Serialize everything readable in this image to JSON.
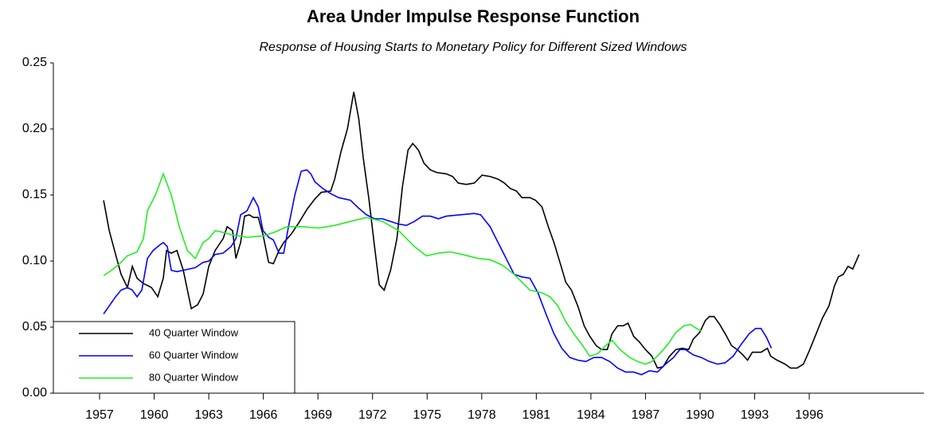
{
  "chart_data": {
    "type": "line",
    "title": "Area Under Impulse Response Function",
    "subtitle": "Response of Housing Starts to Monetary Policy for Different Sized Windows",
    "xlim": [
      1954.46,
      2002.3
    ],
    "xticks": [
      1957,
      1960,
      1963,
      1966,
      1969,
      1972,
      1975,
      1978,
      1981,
      1984,
      1987,
      1990,
      1993,
      1996
    ],
    "ylim": [
      0,
      0.25
    ],
    "yticks": [
      {
        "value": 0,
        "label": "0.00"
      },
      0.05,
      {
        "value": 0.1,
        "label": "0.10"
      },
      0.15,
      {
        "value": 0.2,
        "label": "0.20"
      },
      0.25
    ],
    "grid": false,
    "legend": "lower-left",
    "series": [
      {
        "name": "40 Quarter Window",
        "color": "#000000",
        "x": [
          1957.22,
          1957.53,
          1957.88,
          1958.18,
          1958.53,
          1958.8,
          1959.06,
          1959.41,
          1959.85,
          1960.2,
          1960.5,
          1960.68,
          1960.94,
          1961.25,
          1961.6,
          1962.04,
          1962.39,
          1962.69,
          1963.0,
          1963.35,
          1963.79,
          1964.01,
          1964.31,
          1964.49,
          1964.75,
          1964.97,
          1965.23,
          1965.45,
          1965.72,
          1965.98,
          1966.29,
          1966.55,
          1966.86,
          1967.12,
          1967.51,
          1967.95,
          1968.39,
          1968.83,
          1969.18,
          1969.7,
          1969.92,
          1970.27,
          1970.62,
          1970.97,
          1971.24,
          1971.5,
          1971.8,
          1972.11,
          1972.37,
          1972.64,
          1972.99,
          1973.34,
          1973.64,
          1973.95,
          1974.21,
          1974.52,
          1974.83,
          1975.18,
          1975.53,
          1976.05,
          1976.4,
          1976.71,
          1977.15,
          1977.59,
          1978.02,
          1978.46,
          1978.9,
          1979.25,
          1979.56,
          1979.91,
          1980.21,
          1980.65,
          1980.96,
          1981.31,
          1981.66,
          1981.97,
          1982.32,
          1982.62,
          1982.93,
          1983.28,
          1983.63,
          1983.94,
          1984.29,
          1984.59,
          1984.9,
          1985.16,
          1985.47,
          1985.78,
          1986.04,
          1986.35,
          1986.65,
          1987.0,
          1987.35,
          1987.66,
          1987.97,
          1988.32,
          1988.67,
          1989.02,
          1989.37,
          1989.63,
          1989.98,
          1990.29,
          1990.51,
          1990.77,
          1991.08,
          1991.38,
          1991.73,
          1992.04,
          1992.35,
          1992.61,
          1992.87,
          1993.35,
          1993.7,
          1993.88,
          1994.23,
          1994.67,
          1994.97,
          1995.33,
          1995.68,
          1996.03,
          1996.38,
          1996.73,
          1997.08,
          1997.38,
          1997.6,
          1997.87,
          1998.13,
          1998.39,
          1998.74
        ],
        "values": [
          0.146,
          0.123,
          0.105,
          0.09,
          0.08,
          0.096,
          0.087,
          0.083,
          0.08,
          0.073,
          0.087,
          0.108,
          0.106,
          0.108,
          0.093,
          0.064,
          0.067,
          0.075,
          0.096,
          0.108,
          0.117,
          0.126,
          0.123,
          0.102,
          0.114,
          0.134,
          0.135,
          0.133,
          0.133,
          0.12,
          0.099,
          0.098,
          0.108,
          0.114,
          0.12,
          0.129,
          0.139,
          0.147,
          0.152,
          0.153,
          0.162,
          0.183,
          0.2,
          0.228,
          0.208,
          0.177,
          0.147,
          0.111,
          0.082,
          0.078,
          0.093,
          0.117,
          0.156,
          0.184,
          0.189,
          0.184,
          0.174,
          0.169,
          0.167,
          0.166,
          0.164,
          0.159,
          0.158,
          0.159,
          0.165,
          0.164,
          0.162,
          0.159,
          0.155,
          0.153,
          0.148,
          0.148,
          0.146,
          0.141,
          0.126,
          0.114,
          0.098,
          0.084,
          0.078,
          0.066,
          0.051,
          0.043,
          0.036,
          0.033,
          0.033,
          0.045,
          0.051,
          0.051,
          0.053,
          0.043,
          0.039,
          0.033,
          0.028,
          0.019,
          0.02,
          0.028,
          0.033,
          0.034,
          0.033,
          0.041,
          0.046,
          0.055,
          0.058,
          0.058,
          0.052,
          0.045,
          0.036,
          0.033,
          0.029,
          0.025,
          0.031,
          0.031,
          0.034,
          0.028,
          0.025,
          0.022,
          0.019,
          0.019,
          0.022,
          0.033,
          0.045,
          0.057,
          0.066,
          0.081,
          0.088,
          0.09,
          0.096,
          0.094,
          0.105
        ]
      },
      {
        "name": "60 Quarter Window",
        "color": "#0000ff",
        "x": [
          1957.22,
          1957.53,
          1957.88,
          1958.18,
          1958.53,
          1958.8,
          1959.06,
          1959.32,
          1959.63,
          1959.94,
          1960.29,
          1960.5,
          1960.72,
          1960.94,
          1961.25,
          1961.6,
          1962.26,
          1962.69,
          1963.0,
          1963.35,
          1963.79,
          1964.23,
          1964.49,
          1964.75,
          1965.1,
          1965.45,
          1965.72,
          1965.98,
          1966.29,
          1966.55,
          1966.86,
          1967.12,
          1967.38,
          1967.73,
          1968.08,
          1968.39,
          1968.61,
          1968.83,
          1969.26,
          1969.7,
          1970.14,
          1970.79,
          1971.24,
          1971.67,
          1972.11,
          1972.55,
          1972.99,
          1973.43,
          1973.86,
          1974.3,
          1974.74,
          1975.18,
          1975.62,
          1976.05,
          1977.59,
          1977.94,
          1978.46,
          1978.9,
          1979.34,
          1979.78,
          1980.21,
          1980.65,
          1981.09,
          1981.53,
          1981.97,
          1982.4,
          1982.84,
          1983.28,
          1983.72,
          1984.16,
          1984.59,
          1985.03,
          1985.47,
          1985.91,
          1986.35,
          1986.78,
          1987.22,
          1987.66,
          1988.1,
          1988.54,
          1988.89,
          1989.19,
          1989.63,
          1990.07,
          1990.51,
          1990.95,
          1991.38,
          1991.82,
          1992.26,
          1992.7,
          1993.05,
          1993.35,
          1993.66,
          1993.92
        ],
        "values": [
          0.06,
          0.066,
          0.073,
          0.078,
          0.08,
          0.078,
          0.073,
          0.078,
          0.102,
          0.108,
          0.112,
          0.114,
          0.111,
          0.093,
          0.092,
          0.093,
          0.095,
          0.099,
          0.1,
          0.105,
          0.106,
          0.111,
          0.117,
          0.135,
          0.138,
          0.148,
          0.141,
          0.123,
          0.118,
          0.116,
          0.106,
          0.106,
          0.126,
          0.15,
          0.168,
          0.169,
          0.166,
          0.16,
          0.155,
          0.151,
          0.148,
          0.146,
          0.14,
          0.135,
          0.132,
          0.132,
          0.13,
          0.128,
          0.127,
          0.13,
          0.134,
          0.134,
          0.132,
          0.134,
          0.136,
          0.135,
          0.126,
          0.114,
          0.102,
          0.09,
          0.088,
          0.087,
          0.076,
          0.06,
          0.045,
          0.034,
          0.027,
          0.025,
          0.024,
          0.027,
          0.027,
          0.024,
          0.019,
          0.016,
          0.016,
          0.014,
          0.017,
          0.016,
          0.022,
          0.027,
          0.033,
          0.033,
          0.029,
          0.027,
          0.024,
          0.022,
          0.023,
          0.028,
          0.037,
          0.045,
          0.049,
          0.049,
          0.042,
          0.034
        ]
      },
      {
        "name": "80 Quarter Window",
        "color": "#22ee22",
        "x": [
          1957.22,
          1957.66,
          1958.1,
          1958.53,
          1959.06,
          1959.41,
          1959.63,
          1960.07,
          1960.5,
          1960.94,
          1961.38,
          1961.82,
          1962.26,
          1962.69,
          1963.0,
          1963.35,
          1963.7,
          1964.23,
          1965.1,
          1965.98,
          1966.64,
          1967.29,
          1968.17,
          1969.05,
          1969.92,
          1970.79,
          1971.67,
          1972.55,
          1973.43,
          1974.3,
          1974.96,
          1975.62,
          1976.27,
          1976.93,
          1977.81,
          1978.46,
          1979.12,
          1979.78,
          1980.21,
          1980.65,
          1981.31,
          1981.75,
          1982.19,
          1982.62,
          1983.06,
          1983.5,
          1983.94,
          1984.38,
          1984.81,
          1985.16,
          1985.6,
          1986.13,
          1986.57,
          1987.0,
          1987.35,
          1987.79,
          1988.23,
          1988.67,
          1989.11,
          1989.46,
          1989.81,
          1990.07
        ],
        "values": [
          0.089,
          0.093,
          0.098,
          0.104,
          0.107,
          0.117,
          0.138,
          0.15,
          0.166,
          0.15,
          0.126,
          0.108,
          0.102,
          0.114,
          0.117,
          0.123,
          0.122,
          0.12,
          0.118,
          0.119,
          0.122,
          0.126,
          0.126,
          0.125,
          0.127,
          0.13,
          0.133,
          0.13,
          0.123,
          0.111,
          0.104,
          0.106,
          0.107,
          0.105,
          0.102,
          0.101,
          0.097,
          0.09,
          0.084,
          0.078,
          0.076,
          0.073,
          0.066,
          0.054,
          0.045,
          0.037,
          0.028,
          0.03,
          0.036,
          0.04,
          0.033,
          0.027,
          0.024,
          0.022,
          0.024,
          0.03,
          0.037,
          0.046,
          0.051,
          0.052,
          0.049,
          0.047
        ]
      }
    ]
  }
}
